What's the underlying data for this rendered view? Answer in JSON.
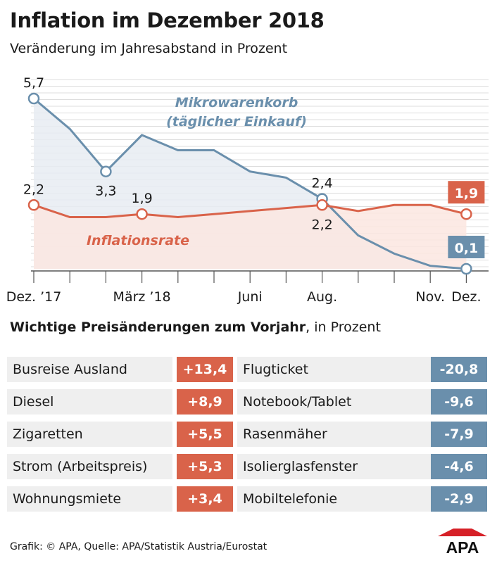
{
  "header": {
    "title": "Inflation im Dezember 2018",
    "subtitle": "Veränderung im Jahresabstand in Prozent"
  },
  "colors": {
    "blue": "#6a8fac",
    "red": "#d9634a",
    "blue_fill": "#e7ecf2",
    "red_fill": "#fbe6e0",
    "grid": "#dddddd",
    "label_bg": "#efefef"
  },
  "chart_data": {
    "type": "line",
    "title": "Inflation im Dezember 2018",
    "subtitle": "Veränderung im Jahresabstand in Prozent",
    "months": [
      "Dez. 2017",
      "Jan. 2018",
      "Feb. 2018",
      "März 2018",
      "Apr. 2018",
      "Mai 2018",
      "Juni 2018",
      "Juli 2018",
      "Aug. 2018",
      "Sep. 2018",
      "Okt. 2018",
      "Nov. 2018",
      "Dez. 2018"
    ],
    "tick_labels": [
      "Dez. ’17",
      "",
      "",
      "März ’18",
      "",
      "",
      "Juni",
      "",
      "Aug.",
      "",
      "",
      "Nov.",
      "Dez."
    ],
    "ylim": [
      0,
      6
    ],
    "series": [
      {
        "name": "Mikrowarenkorb",
        "name_line1": "Mikrowarenkorb",
        "name_line2": "(täglicher Einkauf)",
        "color": "#6a8fac",
        "values": [
          5.7,
          4.7,
          3.3,
          4.5,
          4.0,
          4.0,
          3.3,
          3.1,
          2.4,
          1.2,
          0.6,
          0.2,
          0.1
        ]
      },
      {
        "name": "Inflationsrate",
        "color": "#d9634a",
        "values": [
          2.2,
          1.8,
          1.8,
          1.9,
          1.8,
          1.9,
          2.0,
          2.1,
          2.2,
          2.0,
          2.2,
          2.2,
          1.9
        ]
      }
    ],
    "annotations": [
      {
        "series": 0,
        "index": 0,
        "text": "5,7",
        "pos": "above"
      },
      {
        "series": 0,
        "index": 2,
        "text": "3,3",
        "pos": "below"
      },
      {
        "series": 0,
        "index": 8,
        "text": "2,4",
        "pos": "above"
      },
      {
        "series": 0,
        "index": 12,
        "text": "0,1",
        "pos": "box"
      },
      {
        "series": 1,
        "index": 0,
        "text": "2,2",
        "pos": "above"
      },
      {
        "series": 1,
        "index": 3,
        "text": "1,9",
        "pos": "above"
      },
      {
        "series": 1,
        "index": 8,
        "text": "2,2",
        "pos": "below"
      },
      {
        "series": 1,
        "index": 12,
        "text": "1,9",
        "pos": "box"
      }
    ]
  },
  "price_changes": {
    "title_bold": "Wichtige Preisänderungen zum Vorjahr",
    "title_rest": ", in Prozent",
    "increases": [
      {
        "label": "Busreise Ausland",
        "value": "+13,4"
      },
      {
        "label": "Diesel",
        "value": "+8,9"
      },
      {
        "label": "Zigaretten",
        "value": "+5,5"
      },
      {
        "label": "Strom (Arbeitspreis)",
        "value": "+5,3"
      },
      {
        "label": "Wohnungsmiete",
        "value": "+3,4"
      }
    ],
    "decreases": [
      {
        "label": "Flugticket",
        "value": "-20,8"
      },
      {
        "label": "Notebook/Tablet",
        "value": "-9,6"
      },
      {
        "label": "Rasenmäher",
        "value": "-7,9"
      },
      {
        "label": "Isolierglasfenster",
        "value": "-4,6"
      },
      {
        "label": "Mobiltelefonie",
        "value": "-2,9"
      }
    ]
  },
  "footer": {
    "source": "Grafik: © APA, Quelle: APA/Statistik Austria/Eurostat",
    "logo_text": "APA"
  }
}
